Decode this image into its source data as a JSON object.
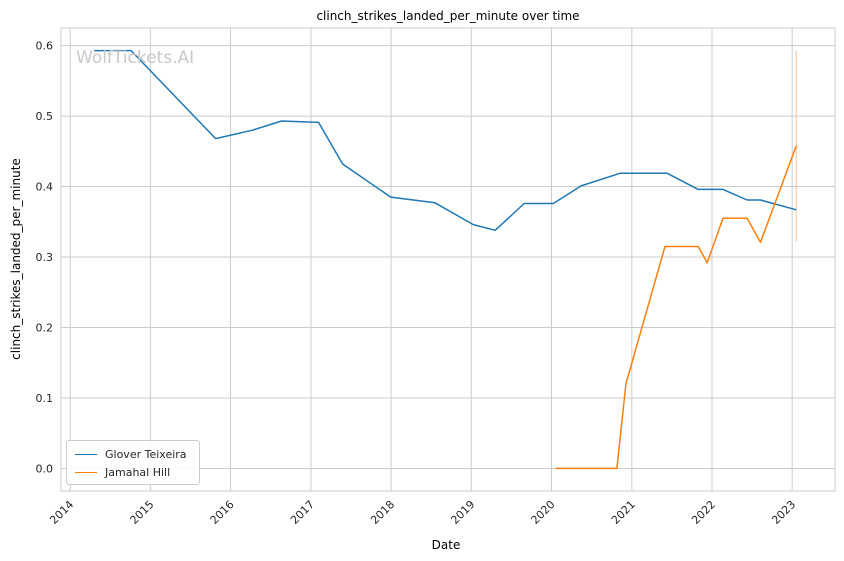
{
  "chart_data": {
    "type": "line",
    "title": "clinch_strikes_landed_per_minute over time",
    "xlabel": "Date",
    "ylabel": "clinch_strikes_landed_per_minute",
    "xlim": [
      "2013-11-20",
      "2023-07-15"
    ],
    "ylim": [
      -0.032,
      0.625
    ],
    "x_ticks": [
      "2014",
      "2015",
      "2016",
      "2017",
      "2018",
      "2019",
      "2020",
      "2021",
      "2022",
      "2023"
    ],
    "y_ticks": [
      "0.0",
      "0.1",
      "0.2",
      "0.3",
      "0.4",
      "0.5",
      "0.6"
    ],
    "grid": true,
    "legend_position": "lower-left",
    "watermark": "WolfTickets.AI",
    "series": [
      {
        "name": "Glover Teixeira",
        "color": "#1f77b4",
        "points": [
          [
            "2014-04-20",
            0.593
          ],
          [
            "2014-10-05",
            0.593
          ],
          [
            "2015-10-25",
            0.468
          ],
          [
            "2016-04-10",
            0.48
          ],
          [
            "2016-08-20",
            0.493
          ],
          [
            "2017-02-05",
            0.491
          ],
          [
            "2017-05-25",
            0.432
          ],
          [
            "2017-12-30",
            0.385
          ],
          [
            "2018-07-20",
            0.377
          ],
          [
            "2019-01-10",
            0.346
          ],
          [
            "2019-04-20",
            0.338
          ],
          [
            "2019-08-30",
            0.376
          ],
          [
            "2020-01-10",
            0.376
          ],
          [
            "2020-05-15",
            0.401
          ],
          [
            "2020-11-10",
            0.419
          ],
          [
            "2021-06-10",
            0.419
          ],
          [
            "2021-10-30",
            0.396
          ],
          [
            "2022-02-20",
            0.396
          ],
          [
            "2022-06-10",
            0.381
          ],
          [
            "2022-08-10",
            0.381
          ],
          [
            "2023-01-20",
            0.367
          ]
        ]
      },
      {
        "name": "Jamahal Hill",
        "color": "#ff7f0e",
        "points": [
          [
            "2020-01-20",
            0.0
          ],
          [
            "2020-10-25",
            0.0
          ],
          [
            "2020-12-05",
            0.12
          ],
          [
            "2021-06-01",
            0.315
          ],
          [
            "2021-10-30",
            0.315
          ],
          [
            "2021-12-10",
            0.292
          ],
          [
            "2022-02-20",
            0.355
          ],
          [
            "2022-06-10",
            0.355
          ],
          [
            "2022-08-10",
            0.321
          ],
          [
            "2023-01-20",
            0.458
          ]
        ]
      }
    ],
    "error_band": {
      "series": "Jamahal Hill",
      "x": "2023-01-20",
      "low": 0.322,
      "high": 0.593,
      "color": "#f7c9a3"
    }
  }
}
